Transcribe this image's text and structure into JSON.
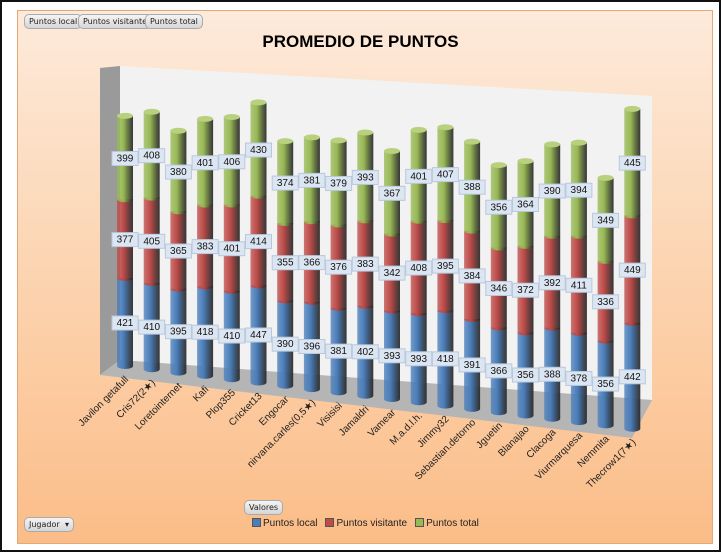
{
  "field_buttons": {
    "top": [
      "Puntos local",
      "Puntos visitante",
      "Puntos total"
    ],
    "values": "Valores",
    "axis": "Jugador"
  },
  "colors": {
    "local": "#4a7ebb",
    "visitante": "#be4b48",
    "total": "#98b954"
  },
  "chart_data": {
    "type": "bar",
    "subtype": "3d-stacked-cylinder",
    "title": "PROMEDIO DE PUNTOS",
    "xlabel": "",
    "ylabel": "",
    "legend_position": "bottom",
    "categories": [
      "Javilon getafull",
      "Cris72(2★)",
      "Loretointernet",
      "Kafi",
      "Plop355",
      "Cricket13",
      "Engocar",
      "nirvana.carles(0,5★)",
      "Visisisi",
      "Jamaldri",
      "Vamear",
      "M.a.d.l.h.",
      "Jimmy32",
      "Sebastian.detorno",
      "Jguetin",
      "Blanajao",
      "Clacoga",
      "Viurmarquesa",
      "Nemmita",
      "Thecrow1(7★)"
    ],
    "series": [
      {
        "name": "Puntos local",
        "values": [
          421,
          410,
          395,
          418,
          410,
          447,
          390,
          396,
          381,
          402,
          393,
          393,
          418,
          391,
          366,
          356,
          388,
          378,
          356,
          442
        ]
      },
      {
        "name": "Puntos visitante",
        "values": [
          377,
          405,
          365,
          383,
          401,
          414,
          355,
          366,
          376,
          383,
          342,
          408,
          395,
          384,
          346,
          372,
          392,
          411,
          336,
          449
        ]
      },
      {
        "name": "Puntos total",
        "values": [
          399,
          408,
          380,
          401,
          406,
          430,
          374,
          381,
          379,
          393,
          367,
          401,
          407,
          388,
          356,
          364,
          390,
          394,
          349,
          445
        ]
      }
    ]
  }
}
